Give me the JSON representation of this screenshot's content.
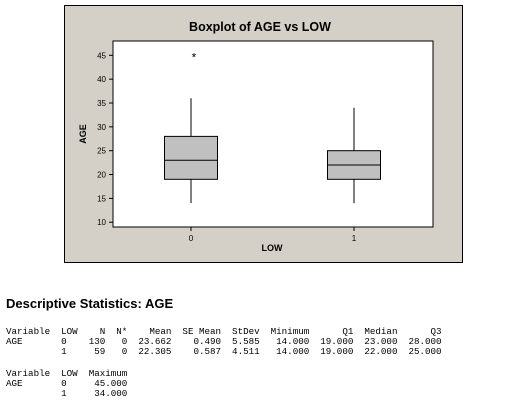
{
  "chart_data": {
    "type": "boxplot",
    "title": "Boxplot of AGE vs LOW",
    "xlabel": "LOW",
    "ylabel": "AGE",
    "categories": [
      "0",
      "1"
    ],
    "ylim": [
      9,
      48
    ],
    "yticks": [
      "10",
      "15",
      "20",
      "25",
      "30",
      "35",
      "40",
      "45"
    ],
    "boxes": [
      {
        "category": "0",
        "whisker_low": 14,
        "q1": 19,
        "median": 23,
        "q3": 28,
        "whisker_high": 36,
        "outliers": [
          45
        ]
      },
      {
        "category": "1",
        "whisker_low": 14,
        "q1": 19,
        "median": 22,
        "q3": 25,
        "whisker_high": 34,
        "outliers": []
      }
    ],
    "outlier_symbol": "*",
    "box_color": "#c0c0c0",
    "panel_color": "#d4d0c8",
    "grid": false
  },
  "stats": {
    "title": "Descriptive Statistics: AGE",
    "table1": [
      "Variable  LOW    N  N*    Mean  SE Mean  StDev  Minimum      Q1  Median      Q3",
      "AGE       0    130   0  23.662    0.490  5.585   14.000  19.000  23.000  28.000",
      "          1     59   0  22.305    0.587  4.511   14.000  19.000  22.000  25.000"
    ],
    "table2": [
      "Variable  LOW  Maximum",
      "AGE       0     45.000",
      "          1     34.000"
    ]
  }
}
